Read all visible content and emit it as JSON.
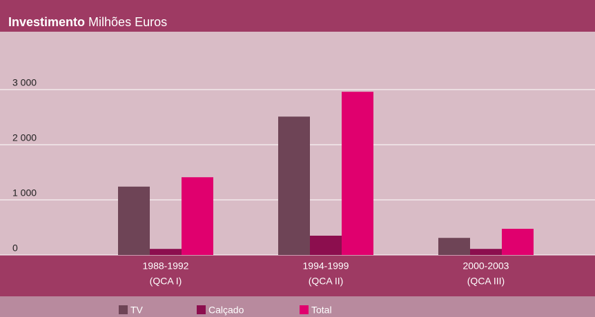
{
  "chart_data": {
    "type": "bar",
    "title": "Investimento",
    "subtitle": "Milhões Euros",
    "categories": [
      [
        "1988-1992",
        "(QCA I)"
      ],
      [
        "1994-1999",
        "(QCA II)"
      ],
      [
        "2000-2003",
        "(QCA III)"
      ]
    ],
    "series": [
      {
        "name": "TV",
        "color": "#6e4456",
        "values": [
          1240,
          2510,
          310
        ]
      },
      {
        "name": "Calçado",
        "color": "#8c0e4e",
        "values": [
          110,
          350,
          110
        ]
      },
      {
        "name": "Total",
        "color": "#e0006e",
        "values": [
          1410,
          2960,
          475
        ]
      }
    ],
    "ylim": [
      0,
      4000
    ],
    "yticks": [
      {
        "value": 0,
        "label": "0"
      },
      {
        "value": 1000,
        "label": "1 000"
      },
      {
        "value": 2000,
        "label": "2 000"
      },
      {
        "value": 3000,
        "label": "3 000"
      }
    ],
    "grid": true
  }
}
